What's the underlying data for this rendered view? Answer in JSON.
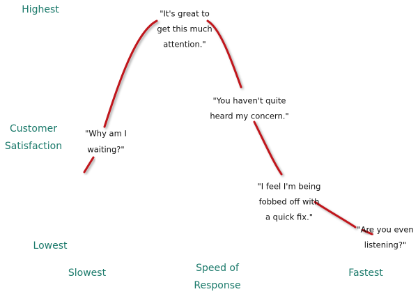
{
  "y_axis": {
    "title": [
      "Customer",
      "Satisfaction"
    ],
    "top": "Highest",
    "bottom": "Lowest"
  },
  "x_axis": {
    "title": [
      "Speed of",
      "Response"
    ],
    "left": "Slowest",
    "right": "Fastest"
  },
  "quotes": [
    {
      "lines": [
        "\"Why am I",
        "waiting?\""
      ]
    },
    {
      "lines": [
        "\"It's great to",
        "get this much",
        "attention.\""
      ]
    },
    {
      "lines": [
        "\"You haven't quite",
        "heard my concern.\""
      ]
    },
    {
      "lines": [
        "\"I feel I'm being",
        "fobbed off with",
        "a quick fix.\""
      ]
    },
    {
      "lines": [
        "\"Are you even",
        "listening?\""
      ]
    }
  ]
}
